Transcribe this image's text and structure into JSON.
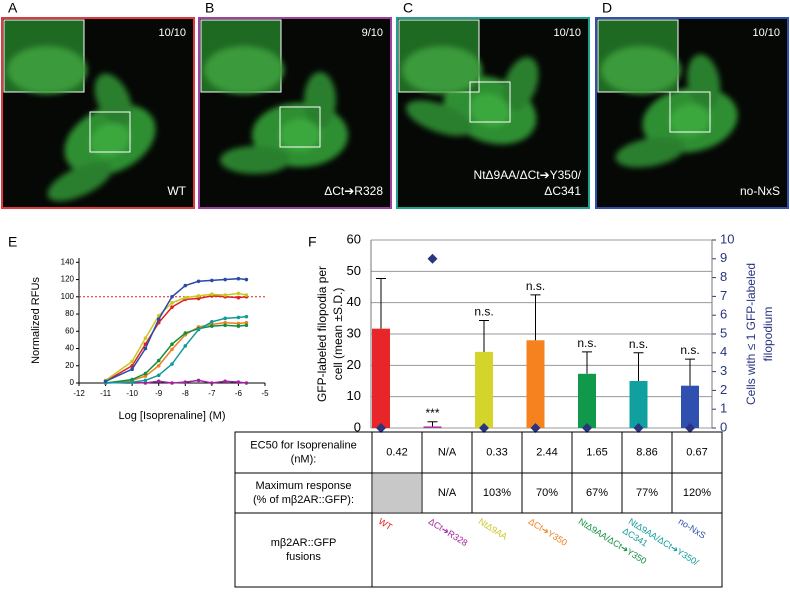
{
  "image_panels": [
    {
      "letter": "A",
      "count": "10/10",
      "label_lines": [
        "WT"
      ],
      "border_color": "#e0393e"
    },
    {
      "letter": "B",
      "count": "9/10",
      "label_lines": [
        "ΔCt➔R328"
      ],
      "border_color": "#a040a0"
    },
    {
      "letter": "C",
      "count": "10/10",
      "label_lines": [
        "NtΔ9AA/ΔCt➔Y350/",
        "ΔC341"
      ],
      "border_color": "#20a090"
    },
    {
      "letter": "D",
      "count": "10/10",
      "label_lines": [
        "no-NxS"
      ],
      "border_color": "#3050b0"
    }
  ],
  "chart_data": [
    {
      "type": "line",
      "panel": "E",
      "ylabel": "Normalized RFUs",
      "xlabel": "Log [Isoprenaline] (M)",
      "xlim": [
        -12,
        -5
      ],
      "xticks": [
        -12,
        -11,
        -10,
        -9,
        -8,
        -7,
        -6,
        -5
      ],
      "ylim": [
        0,
        145
      ],
      "yticks": [
        0,
        20,
        40,
        60,
        80,
        100,
        120,
        140
      ],
      "reference_line": {
        "value": 100,
        "color": "#e02020"
      },
      "x": [
        -11,
        -10,
        -9.5,
        -9,
        -8.5,
        -8,
        -7.5,
        -7,
        -6.5,
        -6,
        -5.7
      ],
      "series": [
        {
          "color": "#e02020",
          "values": [
            2,
            20,
            45,
            70,
            88,
            97,
            98,
            101,
            100,
            99,
            100
          ]
        },
        {
          "color": "#a020a0",
          "values": [
            0,
            1,
            0,
            2,
            0,
            1,
            3,
            0,
            2,
            1,
            0
          ]
        },
        {
          "color": "#c8c820",
          "values": [
            3,
            25,
            52,
            78,
            93,
            99,
            101,
            103,
            102,
            104,
            102
          ]
        },
        {
          "color": "#f07f20",
          "values": [
            0,
            3,
            8,
            20,
            39,
            56,
            65,
            68,
            70,
            69,
            70
          ]
        },
        {
          "color": "#10903f",
          "values": [
            0,
            4,
            11,
            26,
            45,
            58,
            63,
            66,
            67,
            66,
            67
          ]
        },
        {
          "color": "#109a9a",
          "values": [
            0,
            1,
            3,
            9,
            22,
            43,
            62,
            71,
            75,
            76,
            77
          ]
        },
        {
          "color": "#2a4aaa",
          "values": [
            2,
            16,
            40,
            74,
            100,
            113,
            118,
            119,
            120,
            121,
            120
          ]
        }
      ]
    },
    {
      "type": "bar",
      "panel": "F",
      "ylabel_lines": [
        "GFP-labeled filopodia per",
        "cell (mean ±S.D.)"
      ],
      "y2label_lines": [
        "Cells with ≤ 1 GFP-labeled",
        "filopodium"
      ],
      "ylim": [
        0,
        60
      ],
      "yticks": [
        0,
        10,
        20,
        30,
        40,
        50,
        60
      ],
      "y2lim": [
        0,
        10
      ],
      "y2ticks": [
        0,
        1,
        2,
        3,
        4,
        5,
        6,
        7,
        8,
        9,
        10
      ],
      "grid": true,
      "colors": [
        "#e8262a",
        "#b030b0",
        "#d4d42a",
        "#f5821f",
        "#10994a",
        "#10a0a0",
        "#3050b0"
      ],
      "values": [
        31.7,
        0.5,
        24.3,
        28,
        17.3,
        15,
        13.5
      ],
      "errors": [
        16,
        1.5,
        10,
        14.5,
        7,
        9,
        8.5
      ],
      "significance": [
        null,
        "***",
        "n.s.",
        "n.s.",
        "n.s.",
        "n.s.",
        "n.s."
      ],
      "series": [
        {
          "axis": "y2",
          "color": "#2a3580",
          "values": [
            0,
            9,
            0,
            0,
            0,
            0,
            0
          ]
        }
      ]
    }
  ],
  "table": {
    "colors": [
      "#e02020",
      "#a020a0",
      "#c8c820",
      "#f07f20",
      "#10903f",
      "#109a9a",
      "#2a4aaa"
    ],
    "rows": [
      {
        "header": [
          "EC50 for Isoprenaline",
          "(nM):"
        ],
        "cells": [
          "0.42",
          "N/A",
          "0.33",
          "2.44",
          "1.65",
          "8.86",
          "0.67"
        ]
      },
      {
        "header": [
          "Maximum response",
          "(% of mβ2AR::GFP):"
        ],
        "cells": [
          null,
          "N/A",
          "103%",
          "70%",
          "67%",
          "77%",
          "120%"
        ]
      },
      {
        "header": [
          "mβ2AR::GFP",
          "fusions"
        ],
        "cells": [
          [
            "WT"
          ],
          [
            "ΔCt➔R328"
          ],
          [
            "NtΔ9AA"
          ],
          [
            "ΔCt➔Y350"
          ],
          [
            "NtΔ9AA/ΔCt➔Y350"
          ],
          [
            "NtΔ9AA/ΔCt➔Y350/",
            "ΔC341"
          ],
          [
            "no-NxS"
          ]
        ]
      }
    ]
  }
}
